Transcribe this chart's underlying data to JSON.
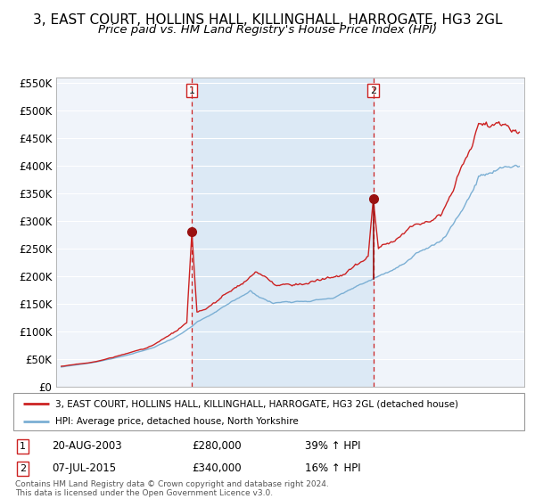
{
  "title": "3, EAST COURT, HOLLINS HALL, KILLINGHALL, HARROGATE, HG3 2GL",
  "subtitle": "Price paid vs. HM Land Registry's House Price Index (HPI)",
  "legend_line1": "3, EAST COURT, HOLLINS HALL, KILLINGHALL, HARROGATE, HG3 2GL (detached house)",
  "legend_line2": "HPI: Average price, detached house, North Yorkshire",
  "footnote": "Contains HM Land Registry data © Crown copyright and database right 2024.\nThis data is licensed under the Open Government Licence v3.0.",
  "sale1_date_label": "20-AUG-2003",
  "sale1_price": 280000,
  "sale1_pct": "39% ↑ HPI",
  "sale2_date_label": "07-JUL-2015",
  "sale2_price": 340000,
  "sale2_pct": "16% ↑ HPI",
  "hpi_color": "#7bafd4",
  "property_color": "#cc2222",
  "marker_color": "#991111",
  "bg_fill_color": "#dce9f5",
  "dashed_color": "#cc2222",
  "ylim_min": 0,
  "ylim_max": 560000,
  "ytick_values": [
    0,
    50000,
    100000,
    150000,
    200000,
    250000,
    300000,
    350000,
    400000,
    450000,
    500000,
    550000
  ],
  "ytick_labels": [
    "£0",
    "£50K",
    "£100K",
    "£150K",
    "£200K",
    "£250K",
    "£300K",
    "£350K",
    "£400K",
    "£450K",
    "£500K",
    "£550K"
  ],
  "title_fontsize": 11,
  "subtitle_fontsize": 9.5,
  "tick_fontsize": 8.5,
  "axis_bg": "#f0f4fa"
}
